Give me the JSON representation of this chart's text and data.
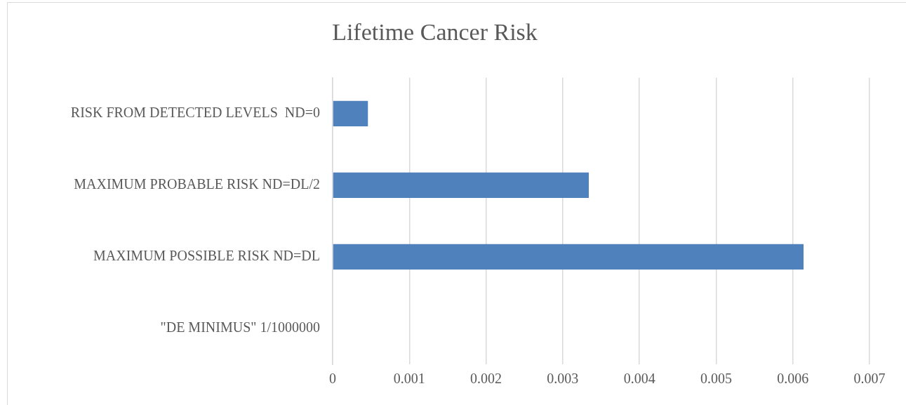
{
  "chart_data": {
    "type": "bar",
    "orientation": "horizontal",
    "title": "Lifetime Cancer Risk",
    "categories": [
      "RISK FROM DETECTED LEVELS  ND=0",
      "MAXIMUM PROBABLE RISK ND=DL/2",
      "MAXIMUM POSSIBLE RISK ND=DL",
      "\"DE MINIMUS\" 1/1000000"
    ],
    "values": [
      0.00046,
      0.00334,
      0.00614,
      0
    ],
    "color": "#4f81bd",
    "xlim": [
      0,
      0.007
    ],
    "xticks": [
      0,
      0.001,
      0.002,
      0.003,
      0.004,
      0.005,
      0.006,
      0.007
    ],
    "grid": "x",
    "legend": false
  }
}
